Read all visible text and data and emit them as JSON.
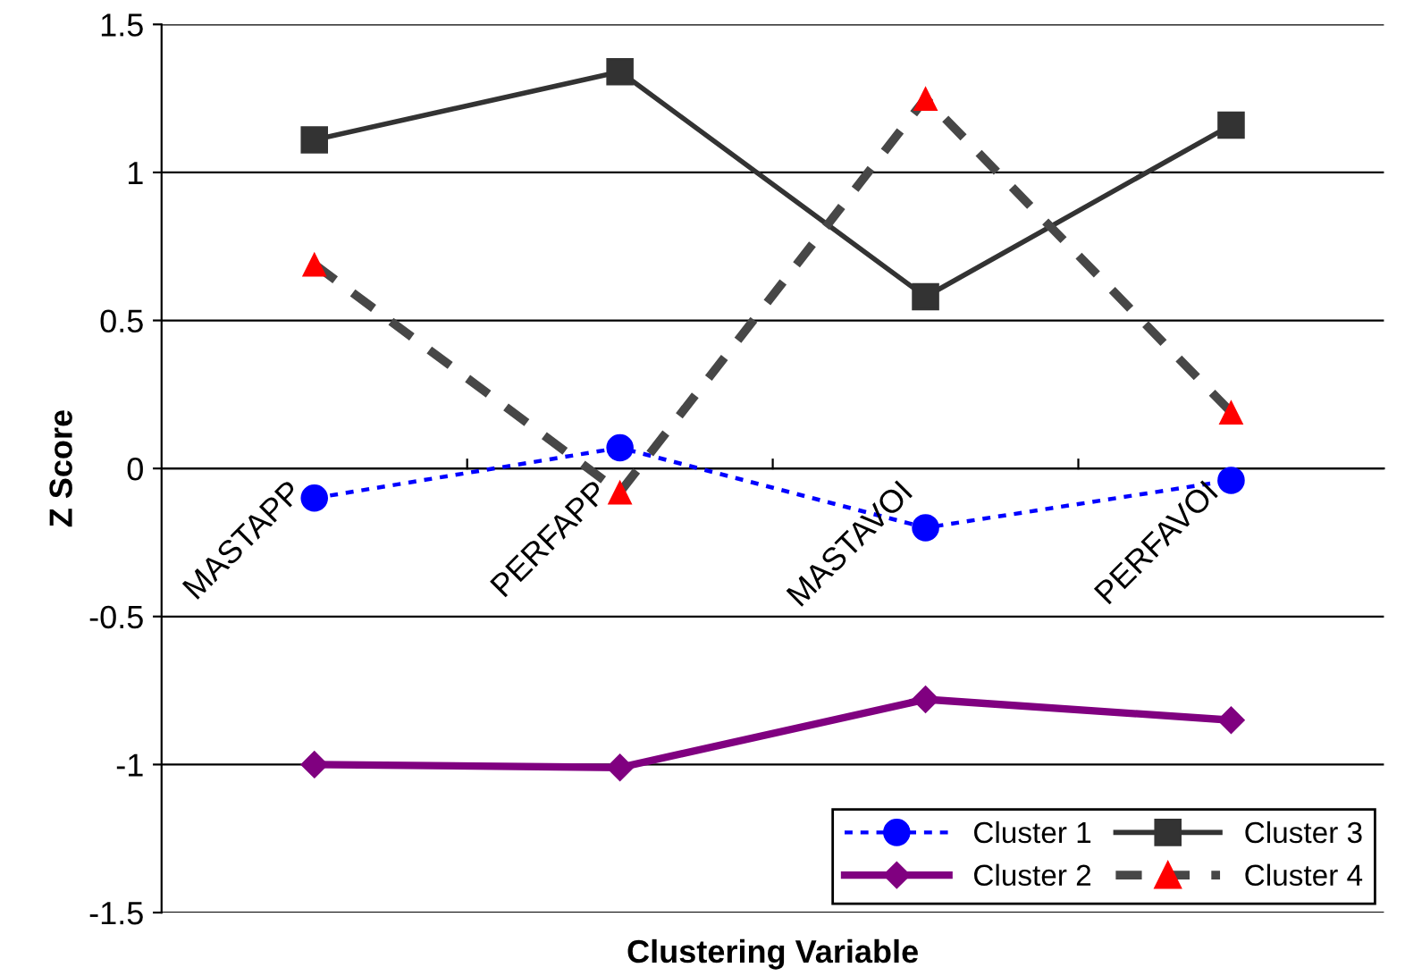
{
  "chart_data": {
    "type": "line",
    "xlabel": "Clustering Variable",
    "ylabel": "Z Score",
    "categories": [
      "MASTAPP",
      "PERFAPP",
      "MASTAVOI",
      "PERFAVOI"
    ],
    "ylim": [
      -1.5,
      1.5
    ],
    "yticks": [
      -1.5,
      -1,
      -0.5,
      0,
      0.5,
      1,
      1.5
    ],
    "grid": "y",
    "legend": "bottom right",
    "series": [
      {
        "name": "Cluster 1",
        "color": "#0000ff",
        "values": [
          -0.1,
          0.07,
          -0.2,
          -0.04
        ],
        "marker": "circle",
        "line_style": "dotted"
      },
      {
        "name": "Cluster 2",
        "color": "#800080",
        "values": [
          -1.0,
          -1.01,
          -0.78,
          -0.85
        ],
        "marker": "diamond",
        "line_style": "solid"
      },
      {
        "name": "Cluster 3",
        "color": "#333333",
        "values": [
          1.11,
          1.34,
          0.58,
          1.16
        ],
        "marker": "square",
        "line_style": "solid"
      },
      {
        "name": "Cluster 4",
        "color": "#474747",
        "colors": [
          "#ff0000",
          "#ff0000",
          "#ff0000",
          "#ff0000"
        ],
        "values": [
          0.69,
          -0.08,
          1.25,
          0.19
        ],
        "marker": "triangle",
        "line_style": "dashed"
      }
    ]
  }
}
